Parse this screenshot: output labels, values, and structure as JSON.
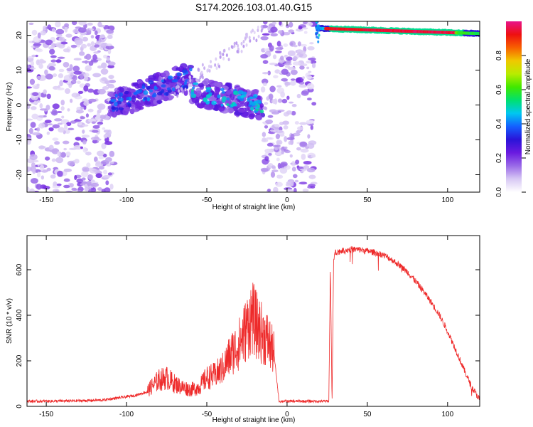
{
  "title": "S174.2026.103.01.40.G15",
  "chart_data": [
    {
      "type": "heatmap",
      "xlabel": "Height of straight line (km)",
      "ylabel": "Frequency (Hz)",
      "xlim": [
        -162,
        120
      ],
      "ylim": [
        -25,
        24
      ],
      "xticks": [
        -150,
        -100,
        -50,
        0,
        50,
        100
      ],
      "yticks": [
        -20,
        -10,
        0,
        10,
        20
      ],
      "colorbar": {
        "label": "Normalized spectral amplitude",
        "range": [
          0,
          1
        ],
        "ticks": [
          0.0,
          0.2,
          0.4,
          0.6,
          0.8
        ],
        "colors": [
          "#ffffff",
          "#d8c8f4",
          "#9a6ae8",
          "#6a1ae0",
          "#2a14d8",
          "#1460ff",
          "#00c8f0",
          "#00e070",
          "#40e800",
          "#b8ec00",
          "#f0c800",
          "#f86000",
          "#ee1010",
          "#e8148a"
        ]
      },
      "features": [
        {
          "name": "noise-left",
          "x_range": [
            -162,
            -108
          ],
          "freq_range": [
            -25,
            24
          ],
          "amplitude": 0.1
        },
        {
          "name": "signal-band-1",
          "x_range": [
            -110,
            -60
          ],
          "freq_center": [
            0,
            8
          ],
          "amplitude": 0.3
        },
        {
          "name": "signal-band-2",
          "x_range": [
            -60,
            -15
          ],
          "freq_center": [
            4,
            0
          ],
          "amplitude": 0.4
        },
        {
          "name": "noise-middle",
          "x_range": [
            -15,
            17
          ],
          "freq_range": [
            -25,
            24
          ],
          "amplitude": 0.1
        },
        {
          "name": "carrier-line",
          "x_range": [
            19,
            120
          ],
          "freq_center": [
            22,
            20.5
          ],
          "amplitude": 0.95
        }
      ]
    },
    {
      "type": "line",
      "xlabel": "Height of straight line (km)",
      "ylabel": "SNR (10 * v/v)",
      "xlim": [
        -162,
        120
      ],
      "ylim": [
        0,
        750
      ],
      "xticks": [
        -150,
        -100,
        -50,
        0,
        50,
        100
      ],
      "yticks": [
        0,
        200,
        400,
        600
      ],
      "series": [
        {
          "name": "SNR",
          "color": "#ee2a2a",
          "x": [
            -162,
            -150,
            -130,
            -115,
            -105,
            -95,
            -88,
            -80,
            -75,
            -70,
            -65,
            -60,
            -55,
            -50,
            -45,
            -40,
            -35,
            -30,
            -25,
            -22,
            -20,
            -18,
            -15,
            -12,
            -10,
            -8,
            -5,
            0,
            10,
            20,
            26,
            27,
            28,
            29,
            30,
            35,
            40,
            45,
            50,
            55,
            60,
            65,
            70,
            75,
            80,
            85,
            90,
            95,
            100,
            105,
            110,
            115,
            120
          ],
          "y": [
            20,
            20,
            22,
            25,
            35,
            45,
            60,
            110,
            120,
            95,
            80,
            70,
            80,
            120,
            130,
            160,
            220,
            260,
            330,
            380,
            350,
            330,
            300,
            280,
            250,
            220,
            20,
            20,
            20,
            20,
            20,
            620,
            10,
            640,
            675,
            685,
            690,
            688,
            682,
            675,
            665,
            645,
            620,
            590,
            550,
            505,
            455,
            400,
            330,
            250,
            165,
            85,
            30
          ]
        }
      ]
    }
  ]
}
